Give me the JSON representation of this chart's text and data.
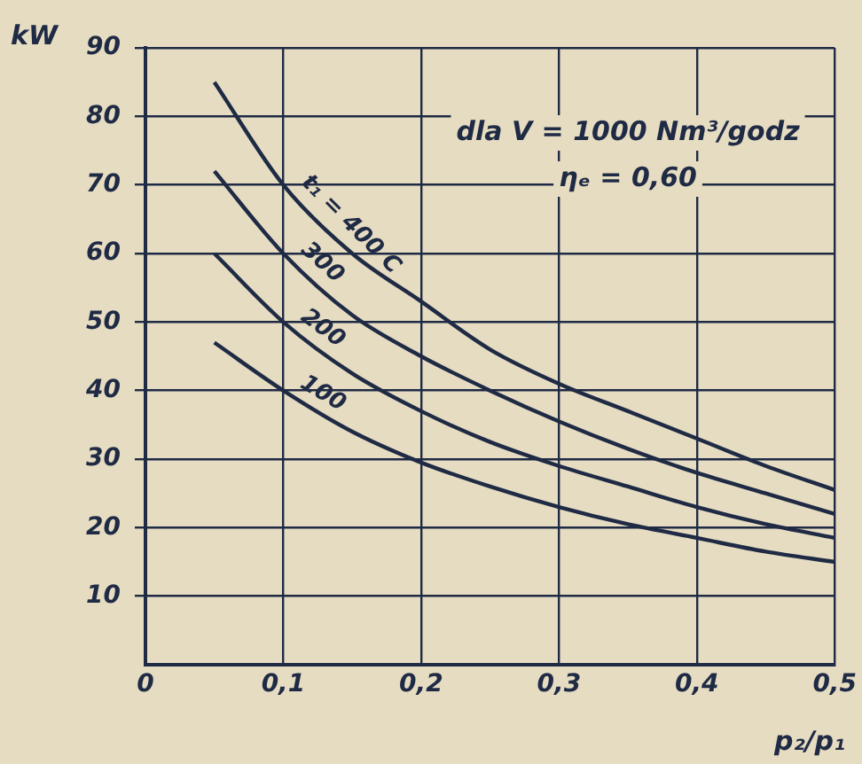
{
  "chart_data": {
    "type": "line",
    "xlabel": "p₂/p₁",
    "ylabel": "kW",
    "annotations": [
      "dla V = 1000 Nm³/godz",
      "ηₑ = 0,60"
    ],
    "x": [
      0.05,
      0.1,
      0.15,
      0.2,
      0.25,
      0.3,
      0.35,
      0.4,
      0.45,
      0.5
    ],
    "series": [
      {
        "name": "t₁ = 400 C",
        "color": "#1f2a44",
        "values": [
          85,
          70,
          60,
          53,
          46,
          41,
          37,
          33,
          29,
          25.5
        ]
      },
      {
        "name": "300",
        "color": "#1f2a44",
        "values": [
          72,
          60,
          51,
          45,
          40,
          35.5,
          31.5,
          28,
          25,
          22
        ]
      },
      {
        "name": "200",
        "color": "#1f2a44",
        "values": [
          60,
          50,
          42.5,
          37,
          32.5,
          29,
          26,
          23,
          20.5,
          18.5
        ]
      },
      {
        "name": "100",
        "color": "#1f2a44",
        "values": [
          47,
          40,
          34,
          29.5,
          26,
          23,
          20.5,
          18.5,
          16.5,
          15
        ]
      }
    ],
    "xlim": [
      0,
      0.5
    ],
    "xticks": [
      {
        "value": 0,
        "label": "0"
      },
      {
        "value": 0.1,
        "label": "0,1"
      },
      {
        "value": 0.2,
        "label": "0,2"
      },
      {
        "value": 0.3,
        "label": "0,3"
      },
      {
        "value": 0.4,
        "label": "0,4"
      },
      {
        "value": 0.5,
        "label": "0,5"
      }
    ],
    "ylim": [
      0,
      90
    ],
    "yticks": [
      10,
      20,
      30,
      40,
      50,
      60,
      70,
      80,
      90
    ],
    "grid": true,
    "legend": false,
    "marker": "none",
    "line_style": "solid"
  }
}
